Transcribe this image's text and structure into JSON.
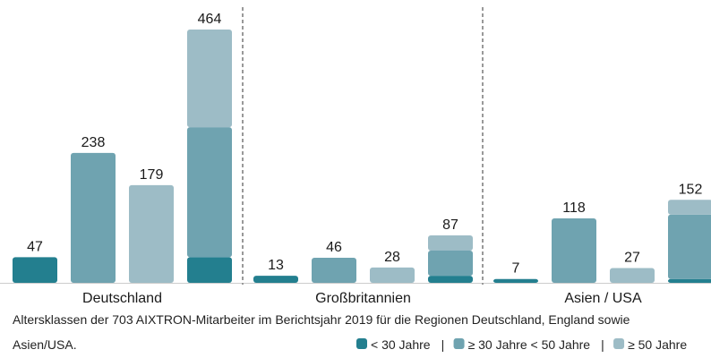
{
  "chart_data": {
    "type": "bar",
    "categories": [
      "Deutschland",
      "Großbritannien",
      "Asien / USA"
    ],
    "series": [
      {
        "name": "< 30 Jahre",
        "color": "#237f8f",
        "values": [
          47,
          13,
          7
        ]
      },
      {
        "name": "≥ 30 Jahre < 50 Jahre",
        "color": "#6fa3b0",
        "values": [
          238,
          46,
          118
        ]
      },
      {
        "name": "≥ 50 Jahre",
        "color": "#9dbcc6",
        "values": [
          179,
          28,
          27
        ]
      }
    ],
    "totals": [
      464,
      87,
      152
    ],
    "caption_lines": [
      "Altersklassen der 703 AIXTRON-Mitarbeiter im Berichtsjahr 2019 für die Regionen Deutschland, England sowie",
      "Asien/USA."
    ]
  }
}
